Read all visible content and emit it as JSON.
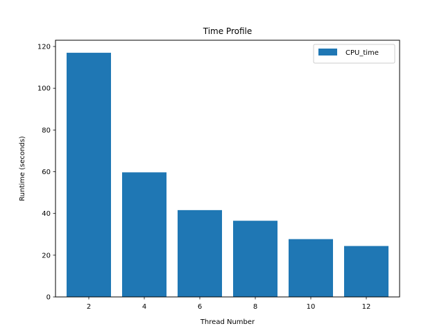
{
  "chart_data": {
    "type": "bar",
    "title": "Time Profile",
    "xlabel": "Thread Number",
    "ylabel": "Runtime (seconds)",
    "categories": [
      "2",
      "4",
      "6",
      "8",
      "10",
      "12"
    ],
    "series": [
      {
        "name": "CPU_time",
        "values": [
          117.0,
          59.7,
          41.6,
          36.5,
          27.7,
          24.4
        ],
        "color": "#1f77b4"
      }
    ],
    "ylim": [
      0,
      123
    ],
    "yticks": [
      0,
      20,
      40,
      60,
      80,
      100,
      120
    ],
    "grid": false,
    "legend_position": "top-right"
  }
}
